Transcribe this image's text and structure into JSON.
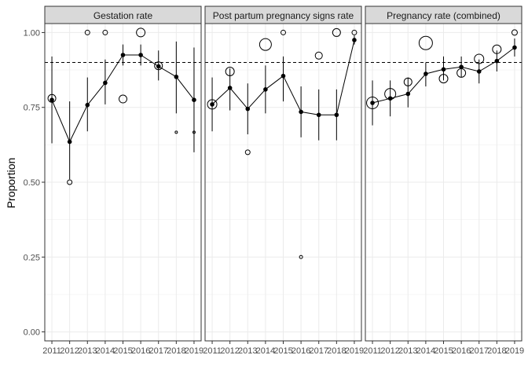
{
  "chart_data": {
    "type": "line",
    "ylabel": "Proportion",
    "ylim": [
      -0.03,
      1.03
    ],
    "y_ticks": [
      0.0,
      0.25,
      0.5,
      0.75,
      1.0
    ],
    "y_tick_labels": [
      "0.00",
      "0.25",
      "0.50",
      "0.75",
      "1.00"
    ],
    "x": [
      2011,
      2012,
      2013,
      2014,
      2015,
      2016,
      2017,
      2018,
      2019
    ],
    "x_tick_labels": [
      "2011",
      "2012",
      "2013",
      "2014",
      "2015",
      "2016",
      "2017",
      "2018",
      "2019"
    ],
    "reference_line": 0.9,
    "grid": true,
    "facets": [
      {
        "strip": "Gestation rate",
        "fitted": [
          0.775,
          0.635,
          0.758,
          0.832,
          0.925,
          0.925,
          0.887,
          0.852,
          0.775
        ],
        "lower": [
          0.63,
          0.51,
          0.67,
          0.76,
          0.89,
          0.89,
          0.84,
          0.73,
          0.6
        ],
        "upper": [
          0.92,
          0.77,
          0.85,
          0.91,
          0.96,
          0.96,
          0.94,
          0.97,
          0.95
        ],
        "observed": [
          {
            "x": 2011,
            "y": 0.78,
            "size": 5
          },
          {
            "x": 2012,
            "y": 0.5,
            "size": 3
          },
          {
            "x": 2013,
            "y": 1.0,
            "size": 3
          },
          {
            "x": 2014,
            "y": 1.0,
            "size": 3
          },
          {
            "x": 2015,
            "y": 0.778,
            "size": 5
          },
          {
            "x": 2016,
            "y": 1.0,
            "size": 5.5
          },
          {
            "x": 2017,
            "y": 0.889,
            "size": 5
          },
          {
            "x": 2018,
            "y": 0.667,
            "size": 1.5
          },
          {
            "x": 2019,
            "y": 0.667,
            "size": 1.5
          }
        ]
      },
      {
        "strip": "Post partum pregnancy signs rate",
        "fitted": [
          0.76,
          0.815,
          0.745,
          0.81,
          0.855,
          0.735,
          0.725,
          0.725,
          0.975
        ],
        "lower": [
          0.67,
          0.74,
          0.66,
          0.73,
          0.77,
          0.65,
          0.64,
          0.64,
          0.96
        ],
        "upper": [
          0.85,
          0.88,
          0.83,
          0.89,
          0.92,
          0.82,
          0.81,
          0.81,
          0.99
        ],
        "observed": [
          {
            "x": 2011,
            "y": 0.76,
            "size": 6
          },
          {
            "x": 2012,
            "y": 0.87,
            "size": 5.5
          },
          {
            "x": 2013,
            "y": 0.6,
            "size": 3
          },
          {
            "x": 2014,
            "y": 0.96,
            "size": 7.5
          },
          {
            "x": 2015,
            "y": 1.0,
            "size": 3
          },
          {
            "x": 2016,
            "y": 0.25,
            "size": 2
          },
          {
            "x": 2017,
            "y": 0.923,
            "size": 4.5
          },
          {
            "x": 2018,
            "y": 1.0,
            "size": 5
          },
          {
            "x": 2019,
            "y": 1.0,
            "size": 3
          }
        ]
      },
      {
        "strip": "Pregnancy rate (combined)",
        "fitted": [
          0.765,
          0.78,
          0.795,
          0.862,
          0.877,
          0.885,
          0.87,
          0.905,
          0.95
        ],
        "lower": [
          0.69,
          0.72,
          0.75,
          0.82,
          0.84,
          0.85,
          0.83,
          0.87,
          0.92
        ],
        "upper": [
          0.84,
          0.84,
          0.85,
          0.9,
          0.92,
          0.92,
          0.91,
          0.94,
          0.98
        ],
        "observed": [
          {
            "x": 2011,
            "y": 0.765,
            "size": 7.5
          },
          {
            "x": 2012,
            "y": 0.795,
            "size": 7
          },
          {
            "x": 2013,
            "y": 0.835,
            "size": 5
          },
          {
            "x": 2014,
            "y": 0.965,
            "size": 8.5
          },
          {
            "x": 2015,
            "y": 0.846,
            "size": 5.5
          },
          {
            "x": 2016,
            "y": 0.865,
            "size": 5.5
          },
          {
            "x": 2017,
            "y": 0.912,
            "size": 6
          },
          {
            "x": 2018,
            "y": 0.944,
            "size": 5.5
          },
          {
            "x": 2019,
            "y": 1.0,
            "size": 3.5
          }
        ]
      }
    ]
  }
}
